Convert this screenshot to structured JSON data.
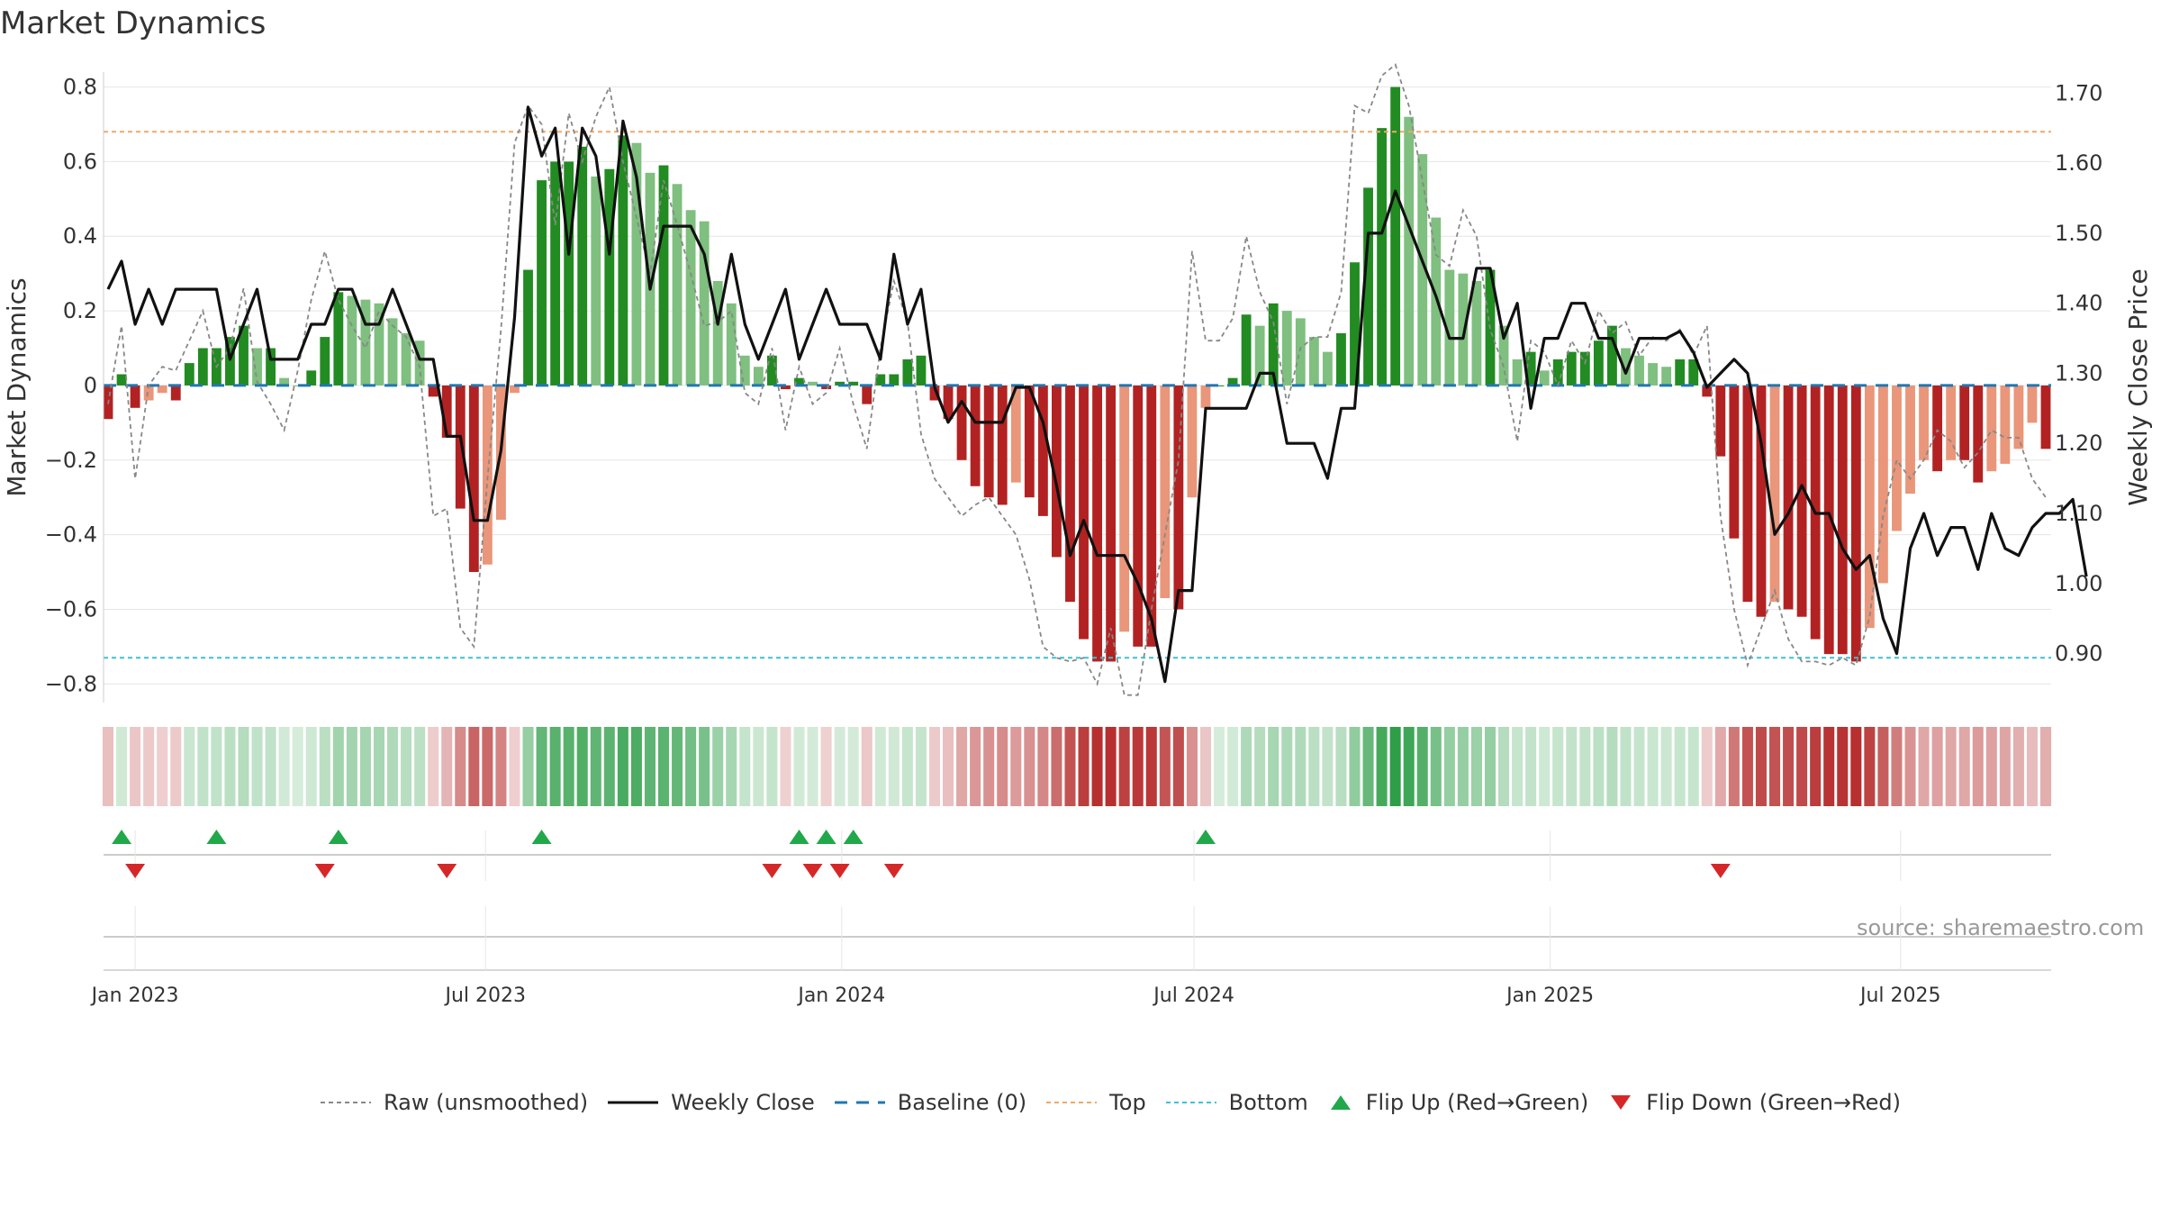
{
  "title": "Market Dynamics",
  "source": "source: sharemaestro.com",
  "colors": {
    "strong_green": "#228B22",
    "light_green": "#7fbf7f",
    "strong_red": "#b22222",
    "light_red": "#e9967a",
    "top_line": "#f0a868",
    "bottom_line": "#3cc1d6",
    "baseline": "#1f77b4",
    "flip_up": "#21a84a",
    "flip_down": "#d62728"
  },
  "legend": {
    "raw": "Raw (unsmoothed)",
    "weekly": "Weekly Close",
    "baseline": "Baseline (0)",
    "top": "Top",
    "bottom": "Bottom",
    "flip_up": "Flip Up (Red→Green)",
    "flip_down": "Flip Down (Green→Red)"
  },
  "chart_data": {
    "type": "bar",
    "title": "Market Dynamics",
    "ylabel": "Market Dynamics",
    "y2label": "Weekly Close Price",
    "ylim": [
      -0.85,
      0.84
    ],
    "y2lim": [
      0.83,
      1.73
    ],
    "yticks": [
      "0.8",
      "0.6",
      "0.4",
      "0.2",
      "0",
      "−0.2",
      "−0.4",
      "−0.6",
      "−0.8"
    ],
    "y2ticks": [
      "1.70",
      "1.60",
      "1.50",
      "1.40",
      "1.30",
      "1.20",
      "1.10",
      "1.00",
      "0.90"
    ],
    "xticks": [
      {
        "label": "Jan 2023",
        "date": "2023-01-01"
      },
      {
        "label": "Jul 2023",
        "date": "2023-07-01"
      },
      {
        "label": "Jan 2024",
        "date": "2024-01-01"
      },
      {
        "label": "Jul 2024",
        "date": "2024-07-01"
      },
      {
        "label": "Jan 2025",
        "date": "2025-01-01"
      },
      {
        "label": "Jul 2025",
        "date": "2025-07-01"
      }
    ],
    "top_level": 0.68,
    "bottom_level": -0.73,
    "baseline": 0,
    "grid": true,
    "start_date": "2022-12-18",
    "week_step_days": 7,
    "dynamics": [
      -0.09,
      0.03,
      -0.06,
      -0.04,
      -0.02,
      -0.04,
      0.06,
      0.1,
      0.1,
      0.13,
      0.16,
      0.1,
      0.1,
      0.02,
      0.0,
      0.04,
      0.13,
      0.25,
      0.24,
      0.23,
      0.22,
      0.18,
      0.14,
      0.12,
      -0.03,
      -0.14,
      -0.33,
      -0.5,
      -0.48,
      -0.36,
      -0.02,
      0.31,
      0.55,
      0.6,
      0.6,
      0.64,
      0.56,
      0.58,
      0.67,
      0.65,
      0.57,
      0.59,
      0.54,
      0.47,
      0.44,
      0.28,
      0.22,
      0.08,
      0.05,
      0.08,
      -0.01,
      0.02,
      0.01,
      -0.01,
      0.01,
      0.01,
      -0.05,
      0.03,
      0.03,
      0.07,
      0.08,
      -0.04,
      -0.09,
      -0.2,
      -0.27,
      -0.3,
      -0.32,
      -0.26,
      -0.3,
      -0.35,
      -0.46,
      -0.58,
      -0.68,
      -0.74,
      -0.74,
      -0.66,
      -0.7,
      -0.7,
      -0.57,
      -0.6,
      -0.3,
      -0.06,
      0.0,
      0.02,
      0.19,
      0.16,
      0.22,
      0.2,
      0.18,
      0.13,
      0.09,
      0.14,
      0.33,
      0.53,
      0.69,
      0.8,
      0.72,
      0.62,
      0.45,
      0.31,
      0.3,
      0.28,
      0.31,
      0.16,
      0.07,
      0.09,
      0.04,
      0.07,
      0.09,
      0.09,
      0.12,
      0.16,
      0.1,
      0.08,
      0.06,
      0.05,
      0.07,
      0.07,
      -0.03,
      -0.19,
      -0.41,
      -0.58,
      -0.62,
      -0.58,
      -0.6,
      -0.62,
      -0.68,
      -0.72,
      -0.72,
      -0.74,
      -0.65,
      -0.53,
      -0.39,
      -0.29,
      -0.2,
      -0.23,
      -0.2,
      -0.2,
      -0.26,
      -0.23,
      -0.21,
      -0.17,
      -0.1,
      -0.17
    ],
    "raw": [
      -0.05,
      0.16,
      -0.25,
      0.0,
      0.05,
      0.04,
      0.12,
      0.2,
      0.05,
      0.1,
      0.26,
      0.01,
      -0.05,
      -0.12,
      0.04,
      0.23,
      0.36,
      0.23,
      0.16,
      0.1,
      0.2,
      0.16,
      0.13,
      0.05,
      -0.35,
      -0.33,
      -0.65,
      -0.7,
      -0.25,
      0.15,
      0.65,
      0.75,
      0.7,
      0.43,
      0.73,
      0.6,
      0.72,
      0.8,
      0.6,
      0.45,
      0.3,
      0.55,
      0.43,
      0.3,
      0.16,
      0.17,
      0.2,
      -0.02,
      -0.05,
      0.1,
      -0.12,
      0.05,
      -0.05,
      -0.02,
      0.1,
      -0.05,
      -0.17,
      0.1,
      0.28,
      0.17,
      -0.13,
      -0.25,
      -0.3,
      -0.35,
      -0.32,
      -0.3,
      -0.35,
      -0.4,
      -0.52,
      -0.7,
      -0.73,
      -0.74,
      -0.73,
      -0.8,
      -0.65,
      -0.83,
      -0.83,
      -0.6,
      -0.4,
      -0.2,
      0.36,
      0.12,
      0.12,
      0.18,
      0.4,
      0.25,
      0.17,
      -0.05,
      0.1,
      0.13,
      0.13,
      0.25,
      0.75,
      0.73,
      0.83,
      0.86,
      0.75,
      0.55,
      0.35,
      0.32,
      0.47,
      0.4,
      0.15,
      0.05,
      -0.15,
      0.12,
      0.09,
      0.0,
      0.12,
      0.06,
      0.2,
      0.14,
      0.17,
      0.08,
      0.13,
      0.12,
      0.15,
      0.08,
      0.16,
      -0.35,
      -0.6,
      -0.75,
      -0.65,
      -0.55,
      -0.68,
      -0.74,
      -0.74,
      -0.75,
      -0.73,
      -0.75,
      -0.62,
      -0.35,
      -0.2,
      -0.25,
      -0.2,
      -0.12,
      -0.15,
      -0.22,
      -0.18,
      -0.12,
      -0.14,
      -0.14,
      -0.25,
      -0.3
    ],
    "weekly_close": [
      1.42,
      1.46,
      1.37,
      1.42,
      1.37,
      1.42,
      1.42,
      1.42,
      1.42,
      1.32,
      1.37,
      1.42,
      1.32,
      1.32,
      1.32,
      1.37,
      1.37,
      1.42,
      1.42,
      1.37,
      1.37,
      1.42,
      1.37,
      1.32,
      1.32,
      1.21,
      1.21,
      1.09,
      1.09,
      1.19,
      1.38,
      1.68,
      1.61,
      1.65,
      1.47,
      1.65,
      1.61,
      1.47,
      1.66,
      1.58,
      1.42,
      1.51,
      1.51,
      1.51,
      1.47,
      1.37,
      1.47,
      1.37,
      1.32,
      1.37,
      1.42,
      1.32,
      1.37,
      1.42,
      1.37,
      1.37,
      1.37,
      1.32,
      1.47,
      1.37,
      1.42,
      1.28,
      1.23,
      1.26,
      1.23,
      1.23,
      1.23,
      1.28,
      1.28,
      1.23,
      1.14,
      1.04,
      1.09,
      1.04,
      1.04,
      1.04,
      1.0,
      0.95,
      0.86,
      0.99,
      0.99,
      1.25,
      1.25,
      1.25,
      1.25,
      1.3,
      1.3,
      1.2,
      1.2,
      1.2,
      1.15,
      1.25,
      1.25,
      1.5,
      1.5,
      1.56,
      1.51,
      1.46,
      1.41,
      1.35,
      1.35,
      1.45,
      1.45,
      1.35,
      1.4,
      1.25,
      1.35,
      1.35,
      1.4,
      1.4,
      1.35,
      1.35,
      1.3,
      1.35,
      1.35,
      1.35,
      1.36,
      1.33,
      1.28,
      1.3,
      1.32,
      1.3,
      1.2,
      1.07,
      1.1,
      1.14,
      1.1,
      1.1,
      1.05,
      1.02,
      1.04,
      0.95,
      0.9,
      1.05,
      1.1,
      1.04,
      1.08,
      1.08,
      1.02,
      1.1,
      1.05,
      1.04,
      1.08,
      1.1,
      1.1,
      1.12,
      1.01
    ],
    "flip_up_dates": [
      "2022-12-25",
      "2023-02-12",
      "2023-04-16",
      "2023-07-30",
      "2023-12-10",
      "2023-12-24",
      "2024-01-07",
      "2024-07-07"
    ],
    "flip_down_dates": [
      "2023-01-01",
      "2023-04-09",
      "2023-06-11",
      "2023-11-26",
      "2023-12-17",
      "2023-12-31",
      "2024-01-28",
      "2025-03-30"
    ]
  }
}
